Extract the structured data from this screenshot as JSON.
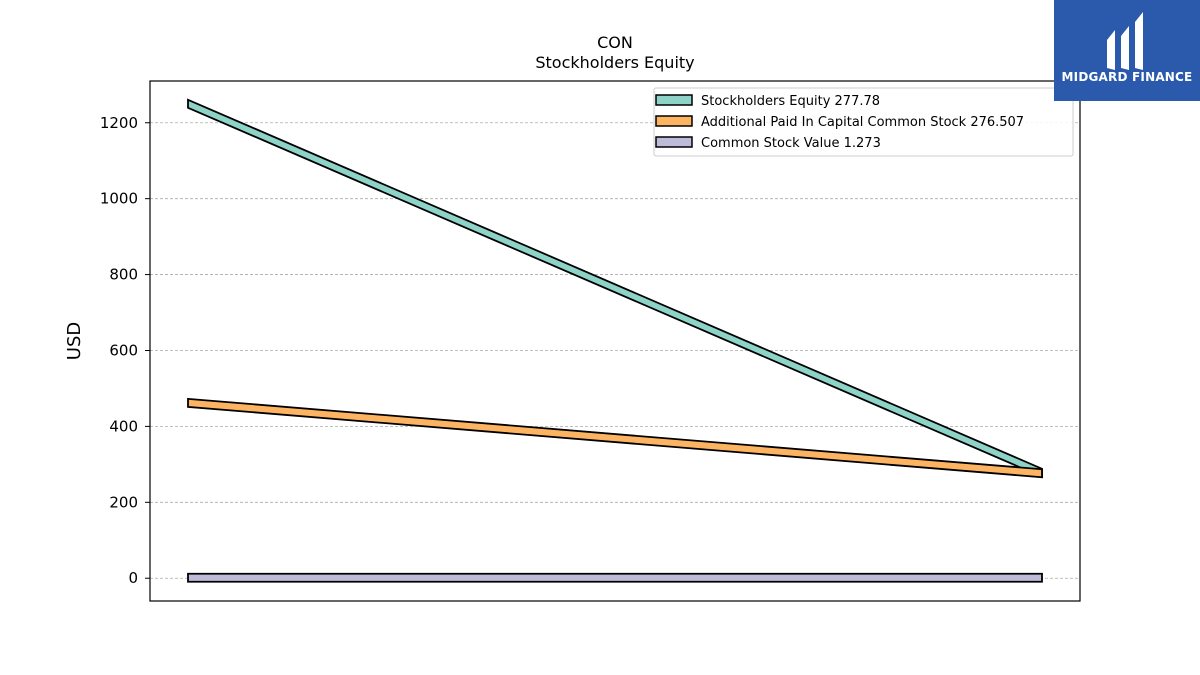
{
  "chart_data": {
    "type": "line",
    "title": "CON",
    "subtitle": "Stockholders  Equity",
    "ylabel": "USD",
    "xlabel": "",
    "ylim": [
      -60,
      1310
    ],
    "yticks": [
      0,
      200,
      400,
      600,
      800,
      1000,
      1200
    ],
    "grid": true,
    "legend_position": "top-right",
    "x": [
      0,
      1
    ],
    "series": [
      {
        "name": "Stockholders Equity",
        "legend_value": "277.78",
        "values": [
          1250,
          277.78
        ],
        "color": "#8dd3c7"
      },
      {
        "name": "Additional Paid In Capital Common Stock",
        "legend_value": "276.507",
        "values": [
          462,
          276.507
        ],
        "color": "#fdb462"
      },
      {
        "name": "Common Stock Value",
        "legend_value": "1.273",
        "values": [
          1.273,
          1.273
        ],
        "color": "#bebada"
      }
    ]
  },
  "logo": {
    "text": "MIDGARD FINANCE",
    "background": "#2b5aad"
  }
}
